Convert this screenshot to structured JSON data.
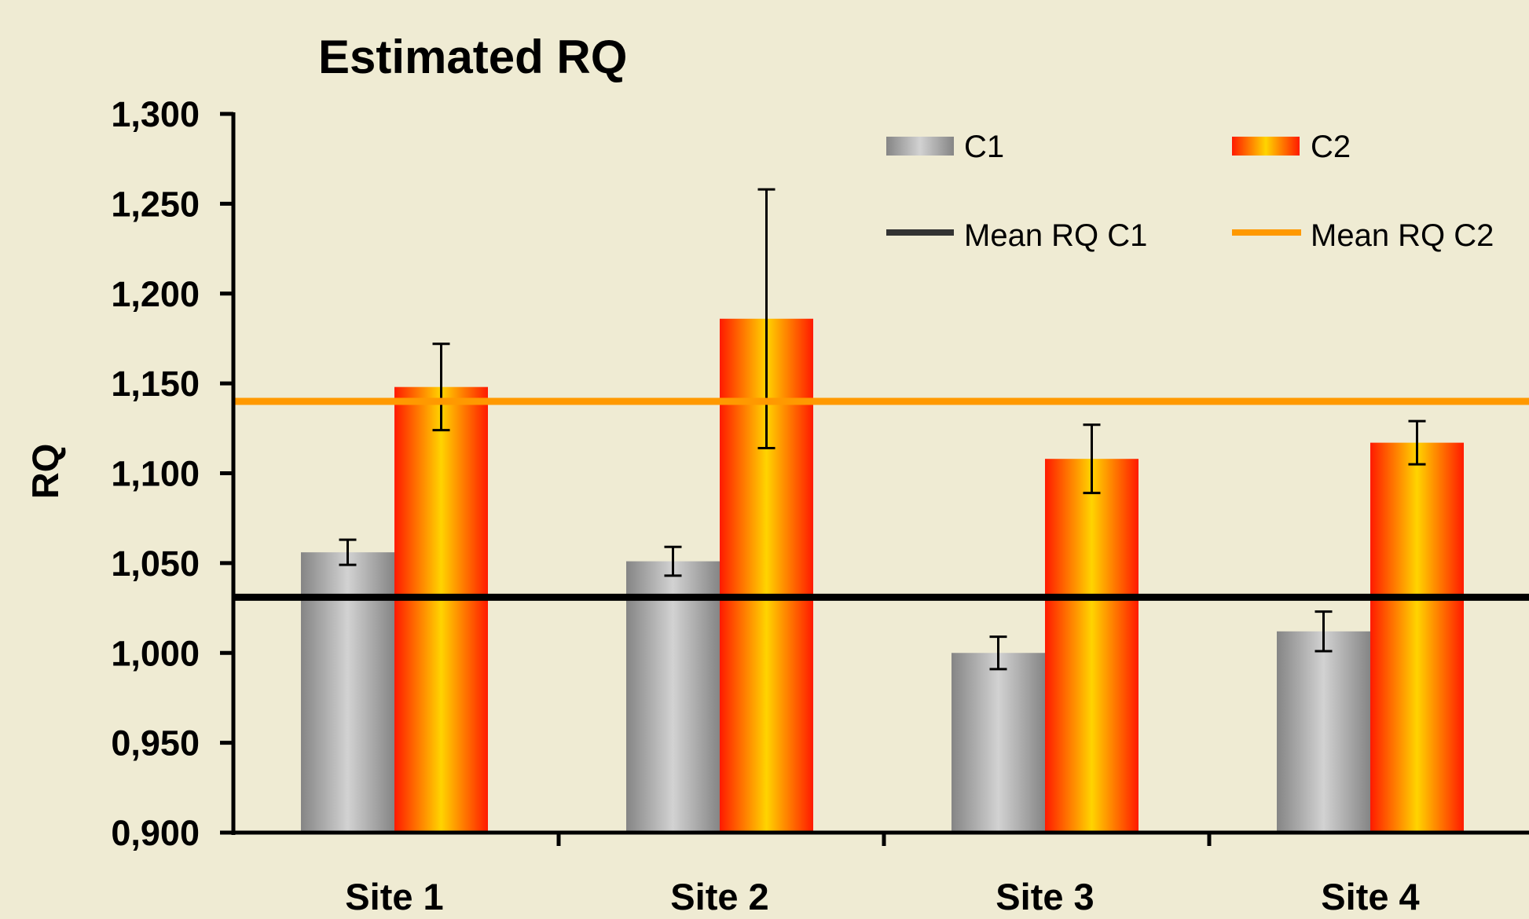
{
  "chart_data": {
    "type": "bar",
    "title": "Estimated RQ",
    "ylabel": "RQ",
    "xlabel": "",
    "categories": [
      "Site 1",
      "Site 2",
      "Site 3",
      "Site 4"
    ],
    "ylim": [
      0.9,
      1.3
    ],
    "ytick_values": [
      0.9,
      0.95,
      1.0,
      1.05,
      1.1,
      1.15,
      1.2,
      1.25,
      1.3
    ],
    "ytick_labels": [
      "0,900",
      "0,950",
      "1,000",
      "1,050",
      "1,100",
      "1,150",
      "1,200",
      "1,250",
      "1,300"
    ],
    "series": [
      {
        "name": "C1",
        "values": [
          1.056,
          1.051,
          1.0,
          1.012
        ],
        "errors": [
          0.007,
          0.008,
          0.009,
          0.011
        ],
        "color": "#a0a0a0"
      },
      {
        "name": "C2",
        "values": [
          1.148,
          1.186,
          1.108,
          1.117
        ],
        "errors": [
          0.024,
          0.072,
          0.019,
          0.012
        ],
        "color": "#ff2a00"
      }
    ],
    "reference_lines": [
      {
        "name": "Mean RQ C1",
        "value": 1.031,
        "color": "#000000"
      },
      {
        "name": "Mean RQ C2",
        "value": 1.14,
        "color": "#ff9900"
      }
    ],
    "grid": false,
    "legend_position": "top-right"
  }
}
